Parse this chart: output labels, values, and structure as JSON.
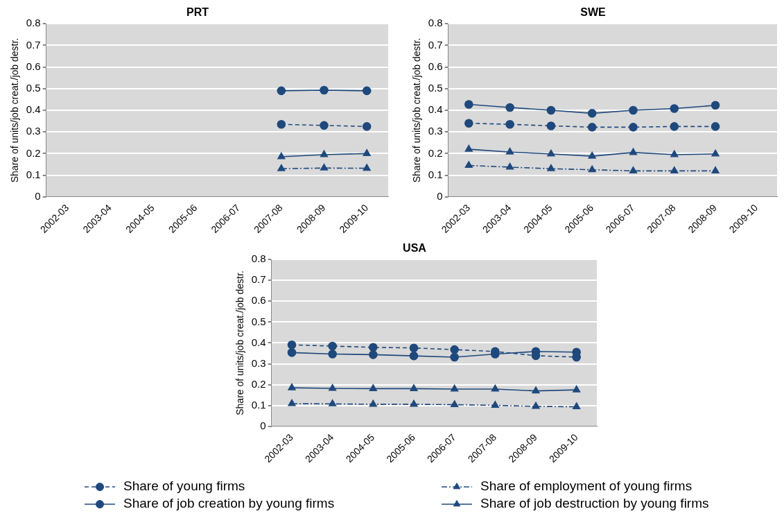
{
  "chart_data": [
    {
      "type": "line",
      "title": "PRT",
      "ylabel": "Share of units/job creat./job destr.",
      "categories": [
        "2002-03",
        "2003-04",
        "2004-05",
        "2005-06",
        "2006-07",
        "2007-08",
        "2008-09",
        "2009-10"
      ],
      "ylim": [
        0,
        0.8
      ],
      "yticks": [
        0,
        0.1,
        0.2,
        0.3,
        0.4,
        0.5,
        0.6,
        0.7,
        0.8
      ],
      "grid": "y",
      "legend": false,
      "series": [
        {
          "color": "#1f497d",
          "marker": "circle",
          "line_style": "dashed",
          "values": [
            null,
            null,
            null,
            null,
            null,
            0.335,
            0.33,
            0.325
          ]
        },
        {
          "color": "#1f497d",
          "marker": "triangle",
          "line_style": "dotted",
          "values": [
            null,
            null,
            null,
            null,
            null,
            0.13,
            0.133,
            0.132
          ]
        },
        {
          "color": "#1f497d",
          "marker": "circle",
          "line_style": "solid",
          "values": [
            null,
            null,
            null,
            null,
            null,
            0.49,
            0.493,
            0.49
          ]
        },
        {
          "color": "#1f497d",
          "marker": "triangle",
          "line_style": "solid",
          "values": [
            null,
            null,
            null,
            null,
            null,
            0.185,
            0.195,
            0.2
          ]
        }
      ]
    },
    {
      "type": "line",
      "title": "SWE",
      "ylabel": "Share of units/job creat./job destr.",
      "categories": [
        "2002-03",
        "2003-04",
        "2004-05",
        "2005-06",
        "2006-07",
        "2007-08",
        "2008-09",
        "2009-10"
      ],
      "ylim": [
        0,
        0.8
      ],
      "yticks": [
        0,
        0.1,
        0.2,
        0.3,
        0.4,
        0.5,
        0.6,
        0.7,
        0.8
      ],
      "grid": "y",
      "legend": false,
      "series": [
        {
          "color": "#1f497d",
          "marker": "circle",
          "line_style": "dashed",
          "values": [
            0.34,
            0.335,
            0.328,
            0.322,
            0.322,
            0.325,
            0.325,
            null
          ]
        },
        {
          "color": "#1f497d",
          "marker": "triangle",
          "line_style": "dotted",
          "values": [
            0.145,
            0.137,
            0.13,
            0.125,
            0.12,
            0.12,
            0.12,
            null
          ]
        },
        {
          "color": "#1f497d",
          "marker": "circle",
          "line_style": "solid",
          "values": [
            0.427,
            0.413,
            0.4,
            0.386,
            0.4,
            0.408,
            0.423,
            null
          ]
        },
        {
          "color": "#1f497d",
          "marker": "triangle",
          "line_style": "solid",
          "values": [
            0.22,
            0.207,
            0.198,
            0.188,
            0.205,
            0.195,
            0.198,
            null
          ]
        }
      ]
    },
    {
      "type": "line",
      "title": "USA",
      "ylabel": "Share of units/job creat./job destr.",
      "categories": [
        "2002-03",
        "2003-04",
        "2004-05",
        "2005-06",
        "2006-07",
        "2007-08",
        "2008-09",
        "2009-10"
      ],
      "ylim": [
        0,
        0.8
      ],
      "yticks": [
        0,
        0.1,
        0.2,
        0.3,
        0.4,
        0.5,
        0.6,
        0.7,
        0.8
      ],
      "grid": "y",
      "legend": "bottom",
      "series": [
        {
          "name": "Share of young firms",
          "color": "#1f497d",
          "marker": "circle",
          "line_style": "dashed",
          "values": [
            0.391,
            0.385,
            0.379,
            0.376,
            0.368,
            0.359,
            0.339,
            0.332
          ]
        },
        {
          "name": "Share of employment of young firms",
          "color": "#1f497d",
          "marker": "triangle",
          "line_style": "dotted",
          "values": [
            0.109,
            0.108,
            0.106,
            0.106,
            0.104,
            0.101,
            0.096,
            0.094
          ]
        },
        {
          "name": "Share of job creation by young firms",
          "color": "#1f497d",
          "marker": "circle",
          "line_style": "solid",
          "values": [
            0.354,
            0.347,
            0.344,
            0.338,
            0.332,
            0.347,
            0.359,
            0.356
          ]
        },
        {
          "name": "Share of job destruction by young firms",
          "color": "#1f497d",
          "marker": "triangle",
          "line_style": "solid",
          "values": [
            0.185,
            0.182,
            0.181,
            0.181,
            0.179,
            0.179,
            0.17,
            0.175
          ]
        }
      ]
    }
  ]
}
